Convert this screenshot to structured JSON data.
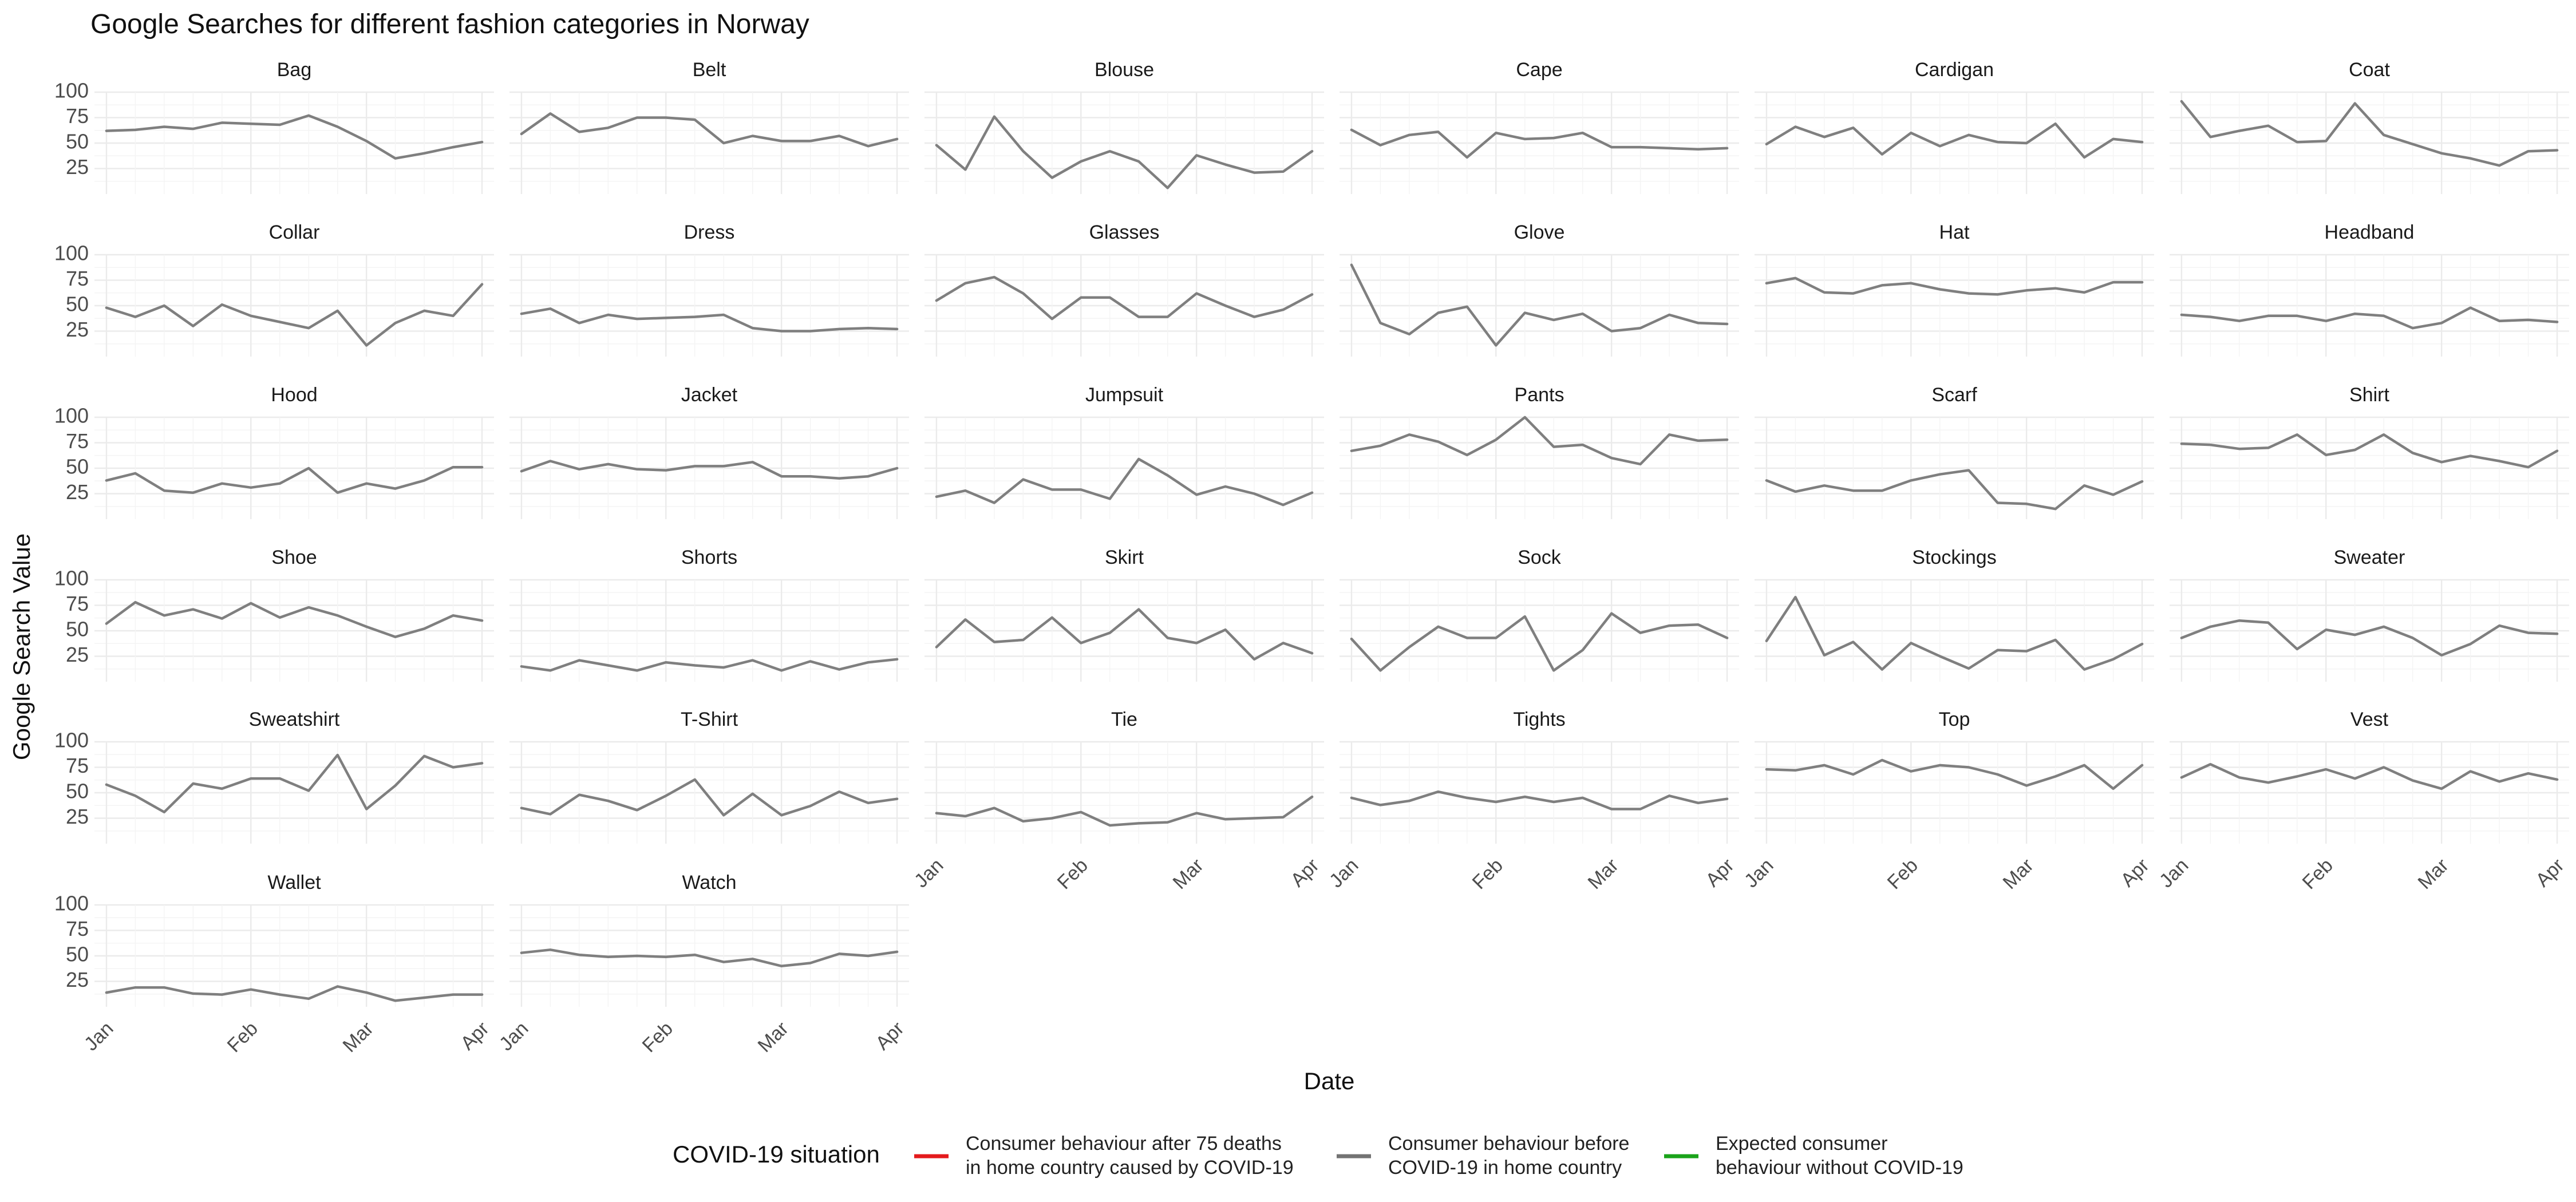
{
  "chart_data": {
    "type": "line",
    "title": "Google Searches for different fashion categories in Norway",
    "xlabel": "Date",
    "ylabel": "Google Search Value",
    "yticks": [
      25,
      50,
      75,
      100
    ],
    "ylim": [
      0,
      100
    ],
    "xticks": [
      "Jan",
      "Feb",
      "Mar",
      "Apr"
    ],
    "x_dates": [
      "Jan 1",
      "Jan 8",
      "Jan 15",
      "Jan 22",
      "Jan 29",
      "Feb 5",
      "Feb 12",
      "Feb 19",
      "Feb 26",
      "Mar 5",
      "Mar 12",
      "Mar 19",
      "Mar 26",
      "Apr 1"
    ],
    "grid": true,
    "legend": {
      "title": "COVID-19 situation",
      "position": "bottom",
      "items": [
        {
          "label_line1": "Consumer behaviour after 75 deaths",
          "label_line2": "in home country caused by COVID-19",
          "color": "#e41a1c"
        },
        {
          "label_line1": "Consumer behaviour before",
          "label_line2": "COVID-19 in home country",
          "color": "#737373"
        },
        {
          "label_line1": "Expected consumer",
          "label_line2": "behaviour without COVID-19",
          "color": "#1aa31a"
        }
      ]
    },
    "panels": [
      {
        "name": "Bag",
        "values": [
          62,
          63,
          66,
          64,
          70,
          69,
          68,
          77,
          66,
          52,
          35,
          40,
          46,
          51
        ]
      },
      {
        "name": "Belt",
        "values": [
          59,
          79,
          61,
          65,
          75,
          75,
          73,
          50,
          57,
          52,
          52,
          57,
          47,
          54
        ]
      },
      {
        "name": "Blouse",
        "values": [
          48,
          24,
          76,
          42,
          16,
          32,
          42,
          32,
          6,
          38,
          29,
          21,
          22,
          42
        ]
      },
      {
        "name": "Cape",
        "values": [
          63,
          48,
          58,
          61,
          36,
          60,
          54,
          55,
          60,
          46,
          46,
          45,
          44,
          45
        ]
      },
      {
        "name": "Cardigan",
        "values": [
          49,
          66,
          56,
          65,
          39,
          60,
          47,
          58,
          51,
          50,
          69,
          36,
          54,
          51
        ]
      },
      {
        "name": "Coat",
        "values": [
          91,
          56,
          62,
          67,
          51,
          52,
          89,
          58,
          49,
          40,
          35,
          28,
          42,
          43
        ]
      },
      {
        "name": "Collar",
        "values": [
          48,
          39,
          50,
          30,
          51,
          40,
          34,
          28,
          45,
          11,
          33,
          45,
          40,
          71
        ]
      },
      {
        "name": "Dress",
        "values": [
          42,
          47,
          33,
          41,
          37,
          38,
          39,
          41,
          28,
          25,
          25,
          27,
          28,
          27
        ]
      },
      {
        "name": "Glasses",
        "values": [
          55,
          72,
          78,
          62,
          37,
          58,
          58,
          39,
          39,
          62,
          50,
          39,
          46,
          61
        ]
      },
      {
        "name": "Glove",
        "values": [
          90,
          33,
          22,
          43,
          49,
          11,
          43,
          36,
          42,
          25,
          28,
          41,
          33,
          32
        ]
      },
      {
        "name": "Hat",
        "values": [
          72,
          77,
          63,
          62,
          70,
          72,
          66,
          62,
          61,
          65,
          67,
          63,
          73,
          73
        ]
      },
      {
        "name": "Headband",
        "values": [
          41,
          39,
          35,
          40,
          40,
          35,
          42,
          40,
          28,
          33,
          48,
          35,
          36,
          34
        ]
      },
      {
        "name": "Hood",
        "values": [
          38,
          45,
          28,
          26,
          35,
          31,
          35,
          50,
          26,
          35,
          30,
          38,
          51,
          51
        ]
      },
      {
        "name": "Jacket",
        "values": [
          47,
          57,
          49,
          54,
          49,
          48,
          52,
          52,
          56,
          42,
          42,
          40,
          42,
          50
        ]
      },
      {
        "name": "Jumpsuit",
        "values": [
          22,
          28,
          16,
          39,
          29,
          29,
          20,
          59,
          43,
          24,
          32,
          25,
          14,
          26
        ]
      },
      {
        "name": "Pants",
        "values": [
          67,
          72,
          83,
          76,
          63,
          78,
          100,
          71,
          73,
          60,
          54,
          83,
          77,
          78
        ]
      },
      {
        "name": "Scarf",
        "values": [
          38,
          27,
          33,
          28,
          28,
          38,
          44,
          48,
          16,
          15,
          10,
          33,
          24,
          37
        ]
      },
      {
        "name": "Shirt",
        "values": [
          74,
          73,
          69,
          70,
          83,
          63,
          68,
          83,
          65,
          56,
          62,
          57,
          51,
          67
        ]
      },
      {
        "name": "Shoe",
        "values": [
          57,
          78,
          65,
          71,
          62,
          77,
          63,
          73,
          65,
          54,
          44,
          52,
          65,
          60
        ]
      },
      {
        "name": "Shorts",
        "values": [
          15,
          11,
          21,
          16,
          11,
          19,
          16,
          14,
          21,
          11,
          20,
          12,
          19,
          22
        ]
      },
      {
        "name": "Skirt",
        "values": [
          34,
          61,
          39,
          41,
          63,
          38,
          48,
          71,
          43,
          38,
          51,
          22,
          38,
          28
        ]
      },
      {
        "name": "Sock",
        "values": [
          42,
          11,
          34,
          54,
          43,
          43,
          64,
          11,
          31,
          67,
          48,
          55,
          56,
          43
        ]
      },
      {
        "name": "Stockings",
        "values": [
          40,
          83,
          26,
          39,
          12,
          38,
          25,
          13,
          31,
          30,
          41,
          12,
          22,
          37
        ]
      },
      {
        "name": "Sweater",
        "values": [
          43,
          54,
          60,
          58,
          32,
          51,
          46,
          54,
          43,
          26,
          37,
          55,
          48,
          47
        ]
      },
      {
        "name": "Sweatshirt",
        "values": [
          58,
          47,
          31,
          59,
          54,
          64,
          64,
          52,
          87,
          34,
          57,
          86,
          75,
          79
        ]
      },
      {
        "name": "T-Shirt",
        "values": [
          35,
          29,
          48,
          42,
          33,
          47,
          63,
          28,
          49,
          28,
          37,
          51,
          40,
          44
        ]
      },
      {
        "name": "Tie",
        "values": [
          30,
          27,
          35,
          22,
          25,
          31,
          18,
          20,
          21,
          30,
          24,
          25,
          26,
          46
        ]
      },
      {
        "name": "Tights",
        "values": [
          45,
          38,
          42,
          51,
          45,
          41,
          46,
          41,
          45,
          34,
          34,
          47,
          40,
          44
        ]
      },
      {
        "name": "Top",
        "values": [
          73,
          72,
          77,
          68,
          82,
          71,
          77,
          75,
          68,
          57,
          66,
          77,
          54,
          77
        ]
      },
      {
        "name": "Vest",
        "values": [
          65,
          78,
          65,
          60,
          66,
          73,
          64,
          75,
          62,
          54,
          71,
          61,
          69,
          63
        ]
      },
      {
        "name": "Wallet",
        "values": [
          14,
          19,
          19,
          13,
          12,
          17,
          12,
          8,
          20,
          14,
          6,
          9,
          12,
          12
        ]
      },
      {
        "name": "Watch",
        "values": [
          53,
          56,
          51,
          49,
          50,
          49,
          51,
          44,
          47,
          40,
          43,
          52,
          50,
          54
        ]
      }
    ]
  }
}
